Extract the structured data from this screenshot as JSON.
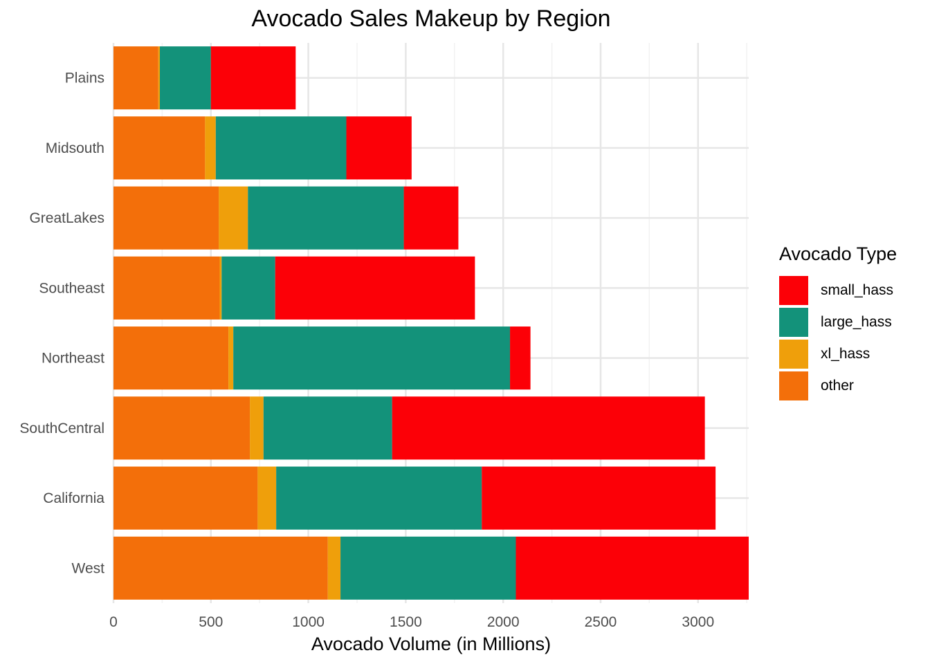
{
  "chart_data": {
    "type": "bar",
    "orientation": "horizontal",
    "stacked": true,
    "title": "Avocado Sales Makeup by Region",
    "xlabel": "Avocado Volume (in Millions)",
    "ylabel": "",
    "xlim": [
      0,
      3260
    ],
    "xticks": [
      0,
      500,
      1000,
      1500,
      2000,
      2500,
      3000
    ],
    "grid": true,
    "legend_title": "Avocado Type",
    "legend_position": "right",
    "categories": [
      "Plains",
      "Midsouth",
      "GreatLakes",
      "Southeast",
      "Northeast",
      "SouthCentral",
      "California",
      "West"
    ],
    "series": [
      {
        "name": "other",
        "color": "#F36F0A",
        "values": [
          230,
          470,
          540,
          545,
          590,
          700,
          740,
          1100
        ]
      },
      {
        "name": "xl_hass",
        "color": "#EF9F0B",
        "values": [
          8,
          55,
          150,
          10,
          25,
          70,
          95,
          65
        ]
      },
      {
        "name": "large_hass",
        "color": "#13927A",
        "values": [
          262,
          670,
          800,
          275,
          1420,
          660,
          1055,
          900
        ]
      },
      {
        "name": "small_hass",
        "color": "#FC0007",
        "values": [
          435,
          335,
          280,
          1025,
          105,
          1605,
          1200,
          1195
        ]
      }
    ],
    "legend_order": [
      "small_hass",
      "large_hass",
      "xl_hass",
      "other"
    ]
  }
}
